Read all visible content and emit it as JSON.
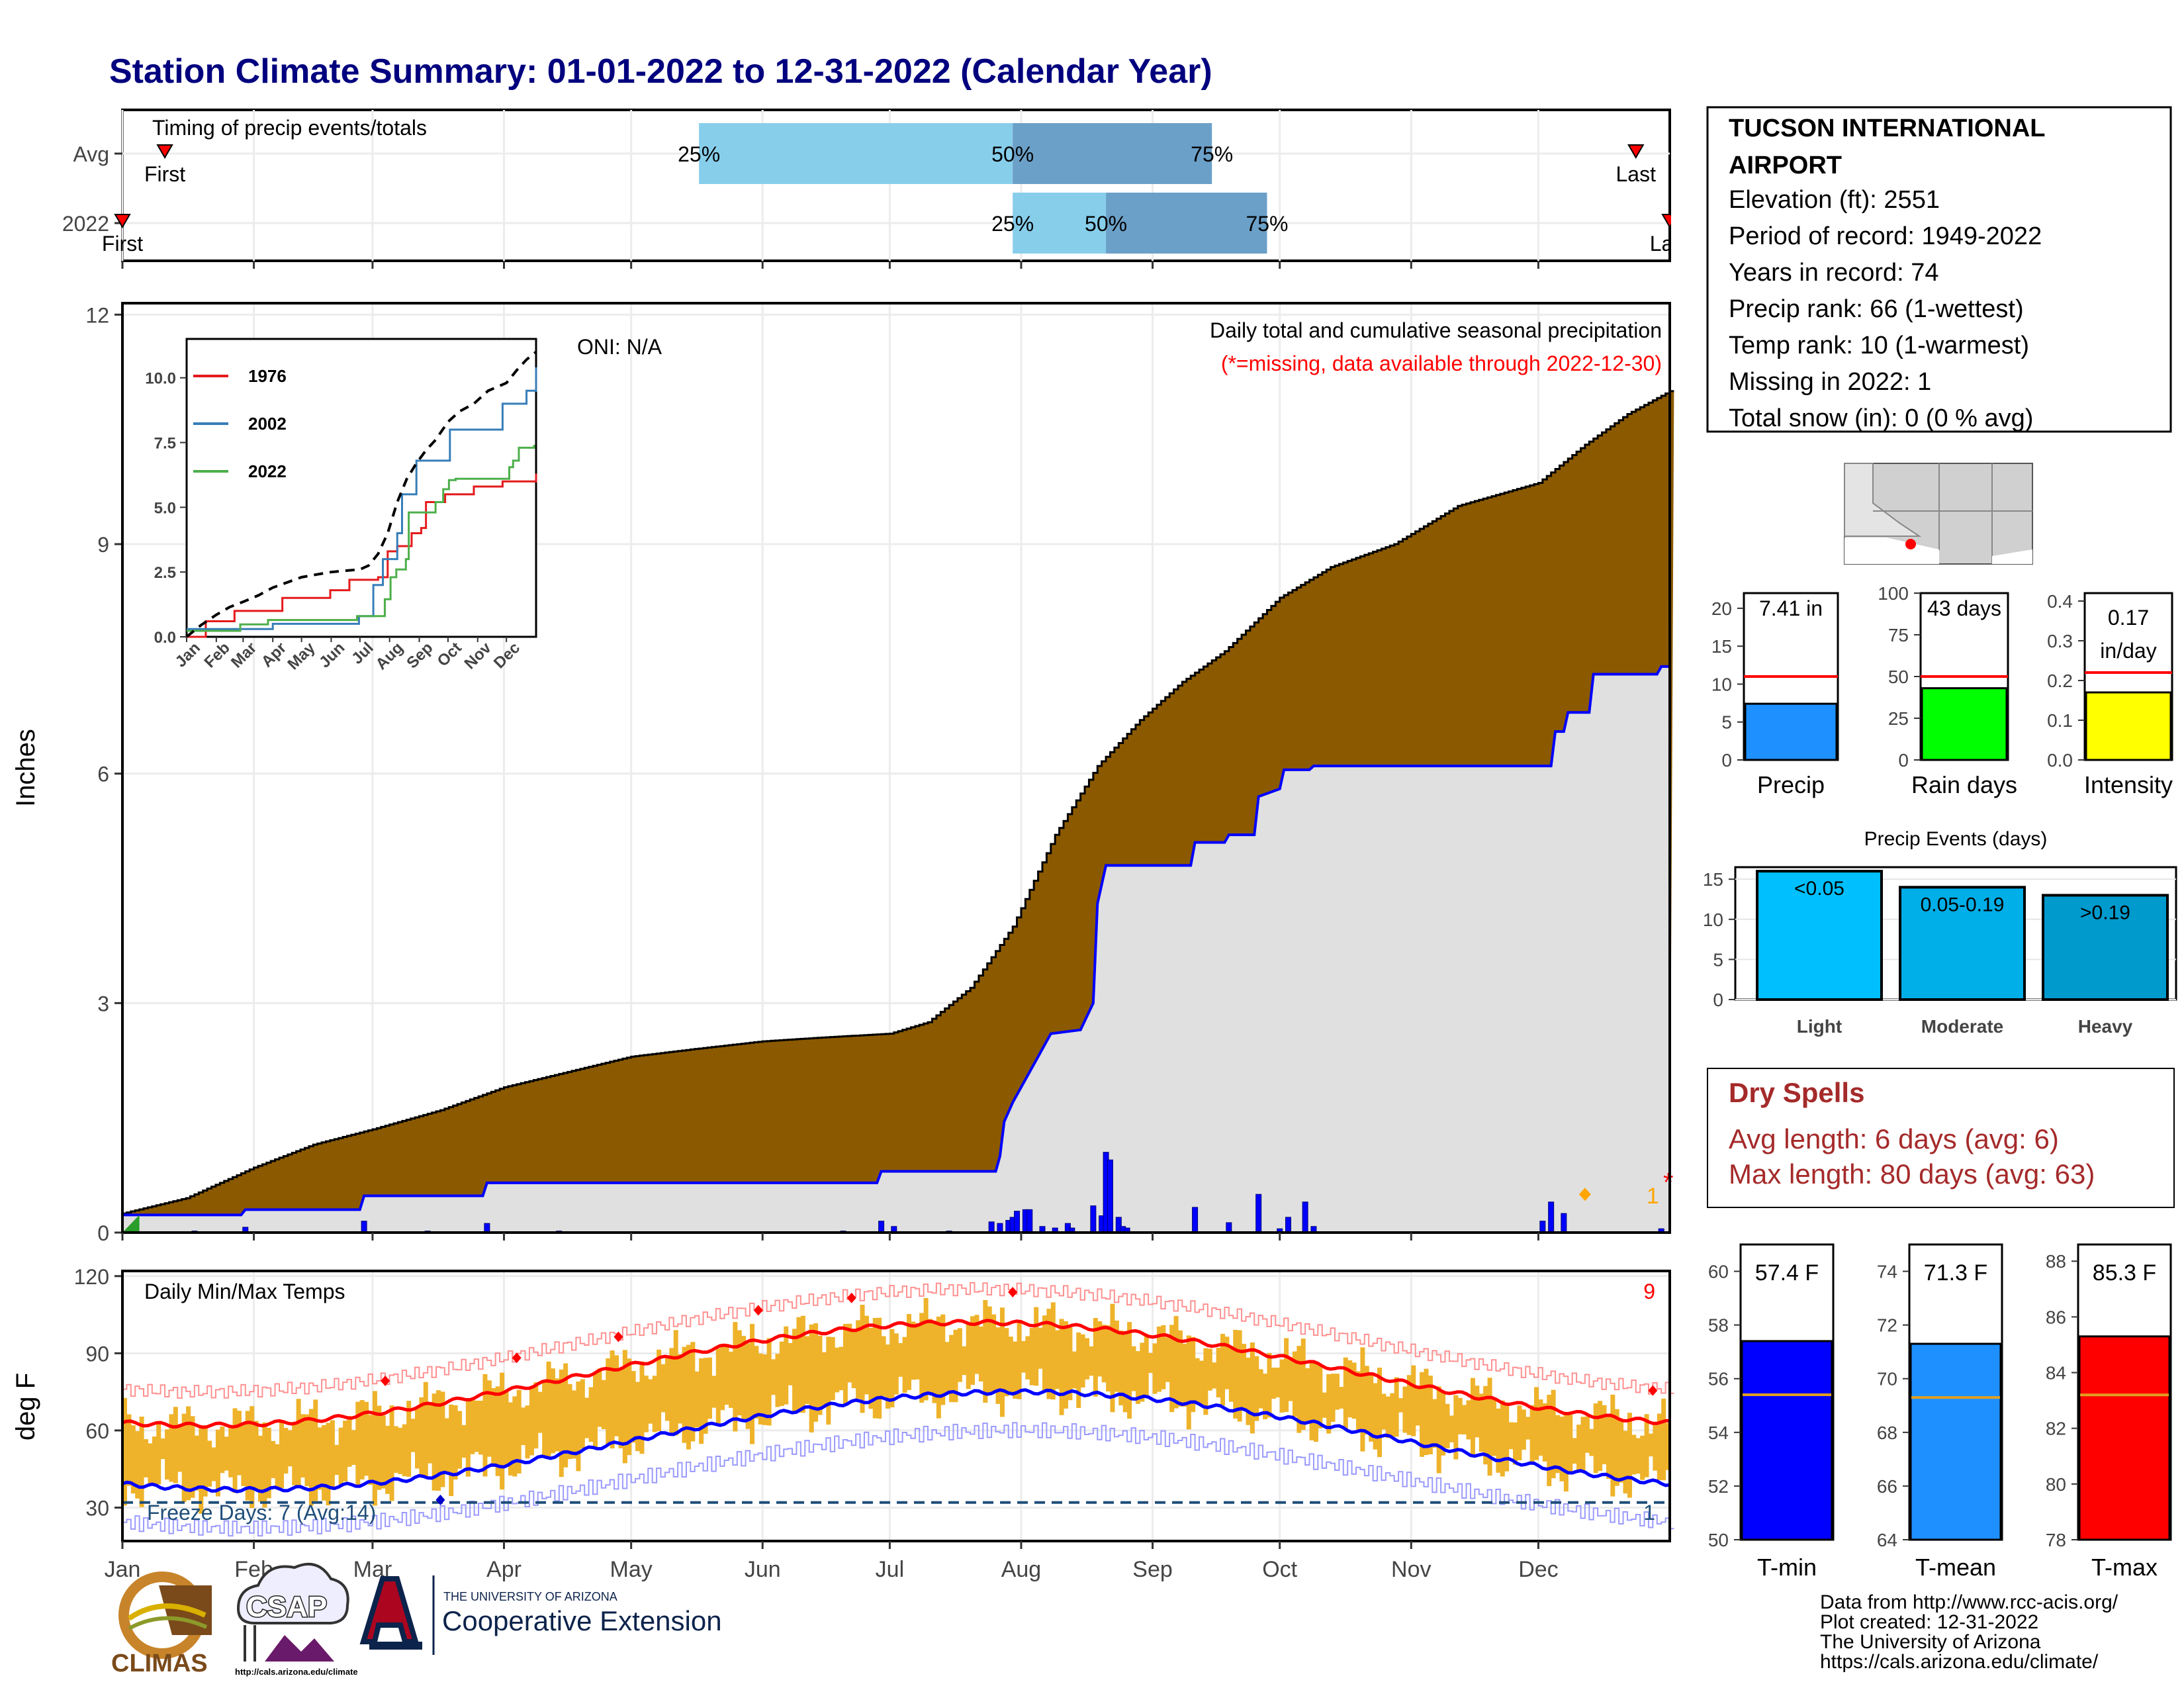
{
  "title": "Station Climate Summary: 01-01-2022 to 12-31-2022 (Calendar Year)",
  "colors": {
    "title": "#00007f",
    "precip_area": "#8b5a00",
    "precip_2022": "#e0e0e0",
    "precip_line": "#0000ff",
    "tmax": "#ff0000",
    "tmin": "#0000ff",
    "temp_bar": "#eeb32a",
    "light_blue": "#87ceeb",
    "mid_blue": "#6ba0c8",
    "dry_spell": "#a52a2a"
  },
  "timing": {
    "title": "Timing of precip events/totals",
    "rows": [
      {
        "label": "Avg",
        "first_label": "First",
        "last_label": "Last",
        "first_day": 10,
        "last_day": 357,
        "q25": 136,
        "q50": 210,
        "q75": 257
      },
      {
        "label": "2022",
        "first_label": "First",
        "last_label": "Last",
        "first_day": 0,
        "last_day": 365,
        "q25": 210,
        "q50": 232,
        "q75": 270
      }
    ],
    "q_labels": [
      "25%",
      "50%",
      "75%"
    ]
  },
  "station": {
    "name": "TUCSON INTERNATIONAL AIRPORT",
    "lines": [
      "Elevation (ft): 2551",
      "Period of record: 1949-2022",
      "Years in record: 74",
      "Precip rank: 66 (1-wettest)",
      "Temp rank: 10 (1-warmest)",
      "Missing in 2022: 1",
      "Total snow (in): 0 (0 % avg)"
    ]
  },
  "main_precip": {
    "ylabel": "Inches",
    "yticks": [
      0,
      3,
      6,
      9,
      12
    ],
    "title": "Daily total and cumulative seasonal precipitation",
    "subtitle": "(*=missing, data available through 2022-12-30)",
    "oni": "ONI: N/A",
    "missing_marker": "*",
    "count_label": "1",
    "avg_cum": [
      [
        0,
        0.25
      ],
      [
        15,
        0.45
      ],
      [
        31,
        0.85
      ],
      [
        45,
        1.15
      ],
      [
        59,
        1.35
      ],
      [
        75,
        1.6
      ],
      [
        90,
        1.9
      ],
      [
        105,
        2.1
      ],
      [
        120,
        2.3
      ],
      [
        135,
        2.4
      ],
      [
        151,
        2.5
      ],
      [
        165,
        2.55
      ],
      [
        181,
        2.6
      ],
      [
        190,
        2.75
      ],
      [
        200,
        3.2
      ],
      [
        210,
        4.0
      ],
      [
        220,
        5.2
      ],
      [
        230,
        6.1
      ],
      [
        240,
        6.7
      ],
      [
        250,
        7.2
      ],
      [
        260,
        7.6
      ],
      [
        273,
        8.3
      ],
      [
        285,
        8.7
      ],
      [
        300,
        9.0
      ],
      [
        315,
        9.5
      ],
      [
        334,
        9.8
      ],
      [
        345,
        10.3
      ],
      [
        355,
        10.7
      ],
      [
        365,
        11.0
      ]
    ],
    "cum_2022": [
      [
        0,
        0.23
      ],
      [
        28,
        0.23
      ],
      [
        29,
        0.3
      ],
      [
        56,
        0.3
      ],
      [
        57,
        0.48
      ],
      [
        85,
        0.48
      ],
      [
        86,
        0.65
      ],
      [
        178,
        0.65
      ],
      [
        179,
        0.8
      ],
      [
        206,
        0.8
      ],
      [
        207,
        1.0
      ],
      [
        208,
        1.45
      ],
      [
        210,
        1.7
      ],
      [
        213,
        2.0
      ],
      [
        216,
        2.3
      ],
      [
        219,
        2.6
      ],
      [
        226,
        2.65
      ],
      [
        229,
        3.0
      ],
      [
        230,
        4.3
      ],
      [
        232,
        4.8
      ],
      [
        252,
        4.8
      ],
      [
        253,
        5.1
      ],
      [
        260,
        5.1
      ],
      [
        261,
        5.2
      ],
      [
        267,
        5.2
      ],
      [
        268,
        5.7
      ],
      [
        273,
        5.8
      ],
      [
        274,
        6.05
      ],
      [
        280,
        6.05
      ],
      [
        281,
        6.1
      ],
      [
        337,
        6.1
      ],
      [
        338,
        6.55
      ],
      [
        340,
        6.55
      ],
      [
        341,
        6.8
      ],
      [
        346,
        6.8
      ],
      [
        347,
        7.3
      ],
      [
        362,
        7.3
      ],
      [
        363,
        7.4
      ],
      [
        365,
        7.4
      ]
    ],
    "daily": [
      [
        17,
        0.02
      ],
      [
        29,
        0.07
      ],
      [
        46,
        0.01
      ],
      [
        57,
        0.15
      ],
      [
        72,
        0.02
      ],
      [
        86,
        0.12
      ],
      [
        103,
        0.02
      ],
      [
        118,
        0.01
      ],
      [
        166,
        0.01
      ],
      [
        170,
        0.02
      ],
      [
        179,
        0.15
      ],
      [
        182,
        0.08
      ],
      [
        195,
        0.02
      ],
      [
        202,
        0.01
      ],
      [
        205,
        0.14
      ],
      [
        207,
        0.12
      ],
      [
        209,
        0.16
      ],
      [
        210,
        0.2
      ],
      [
        211,
        0.28
      ],
      [
        213,
        0.3
      ],
      [
        214,
        0.3
      ],
      [
        217,
        0.08
      ],
      [
        220,
        0.06
      ],
      [
        223,
        0.12
      ],
      [
        224,
        0.06
      ],
      [
        229,
        0.35
      ],
      [
        231,
        0.22
      ],
      [
        233,
        0.09
      ],
      [
        235,
        0.2
      ],
      [
        236,
        0.08
      ],
      [
        237,
        0.06
      ],
      [
        229,
        0.0
      ],
      [
        234,
        0.0
      ],
      [
        236,
        0.0
      ],
      [
        237,
        0.0
      ],
      [
        238,
        0.0
      ],
      [
        236,
        0.0
      ],
      [
        232,
        1.05
      ],
      [
        233,
        0.95
      ],
      [
        253,
        0.33
      ],
      [
        261,
        0.13
      ],
      [
        268,
        0.5
      ],
      [
        273,
        0.05
      ],
      [
        275,
        0.2
      ],
      [
        279,
        0.4
      ],
      [
        281,
        0.08
      ],
      [
        335,
        0.15
      ],
      [
        337,
        0.4
      ],
      [
        340,
        0.25
      ],
      [
        363,
        0.05
      ]
    ],
    "daily_peak": [
      232,
      1.05
    ],
    "orange_marks": [
      [
        345,
        0.5
      ]
    ]
  },
  "inset": {
    "yticks": [
      "0.0",
      "2.5",
      "5.0",
      "7.5",
      "10.0"
    ],
    "months": [
      "Jan",
      "Feb",
      "Mar",
      "Apr",
      "May",
      "Jun",
      "Jul",
      "Aug",
      "Sep",
      "Oct",
      "Nov",
      "Dec"
    ],
    "series": [
      {
        "name": "1976",
        "color": "#e41a1c",
        "values": [
          [
            0,
            0.0
          ],
          [
            20,
            0.6
          ],
          [
            40,
            0.6
          ],
          [
            50,
            1.0
          ],
          [
            90,
            1.0
          ],
          [
            100,
            1.5
          ],
          [
            150,
            1.8
          ],
          [
            170,
            2.2
          ],
          [
            200,
            2.3
          ],
          [
            210,
            3.3
          ],
          [
            220,
            3.5
          ],
          [
            235,
            4.0
          ],
          [
            245,
            4.2
          ],
          [
            250,
            5.2
          ],
          [
            270,
            5.5
          ],
          [
            300,
            5.8
          ],
          [
            330,
            6.0
          ],
          [
            365,
            6.3
          ]
        ]
      },
      {
        "name": "2002",
        "color": "#377eb8",
        "values": [
          [
            0,
            0.3
          ],
          [
            60,
            0.3
          ],
          [
            90,
            0.5
          ],
          [
            170,
            0.5
          ],
          [
            180,
            0.8
          ],
          [
            195,
            2.0
          ],
          [
            205,
            3.0
          ],
          [
            220,
            4.0
          ],
          [
            225,
            5.5
          ],
          [
            240,
            6.8
          ],
          [
            260,
            6.8
          ],
          [
            275,
            8.0
          ],
          [
            300,
            8.0
          ],
          [
            330,
            9.0
          ],
          [
            355,
            9.5
          ],
          [
            365,
            10.4
          ]
        ]
      },
      {
        "name": "2022",
        "color": "#4daf4a",
        "values": [
          [
            0,
            0.23
          ],
          [
            28,
            0.23
          ],
          [
            56,
            0.48
          ],
          [
            85,
            0.65
          ],
          [
            178,
            0.8
          ],
          [
            207,
            1.45
          ],
          [
            213,
            2.3
          ],
          [
            219,
            2.6
          ],
          [
            229,
            3.0
          ],
          [
            232,
            4.8
          ],
          [
            260,
            5.2
          ],
          [
            268,
            5.7
          ],
          [
            274,
            6.05
          ],
          [
            281,
            6.1
          ],
          [
            337,
            6.55
          ],
          [
            341,
            6.8
          ],
          [
            347,
            7.3
          ],
          [
            363,
            7.41
          ]
        ]
      },
      {
        "name": "",
        "color": "#000000",
        "dashed": true,
        "values": [
          [
            0,
            0.0
          ],
          [
            15,
            0.45
          ],
          [
            31,
            0.85
          ],
          [
            45,
            1.15
          ],
          [
            59,
            1.35
          ],
          [
            75,
            1.6
          ],
          [
            90,
            1.9
          ],
          [
            105,
            2.1
          ],
          [
            120,
            2.3
          ],
          [
            135,
            2.4
          ],
          [
            151,
            2.5
          ],
          [
            165,
            2.55
          ],
          [
            181,
            2.6
          ],
          [
            190,
            2.75
          ],
          [
            200,
            3.2
          ],
          [
            210,
            4.0
          ],
          [
            220,
            5.2
          ],
          [
            230,
            6.1
          ],
          [
            240,
            6.7
          ],
          [
            250,
            7.2
          ],
          [
            260,
            7.6
          ],
          [
            273,
            8.3
          ],
          [
            285,
            8.7
          ],
          [
            300,
            9.0
          ],
          [
            315,
            9.5
          ],
          [
            334,
            9.8
          ],
          [
            345,
            10.3
          ],
          [
            355,
            10.7
          ],
          [
            365,
            11.0
          ]
        ]
      }
    ]
  },
  "temp": {
    "ylabel": "deg F",
    "yticks": [
      30,
      60,
      90,
      120
    ],
    "title": "Daily Min/Max Temps",
    "freeze_label": "Freeze Days: 7 (Avg:14)",
    "count_top": "9",
    "count_bottom": "1",
    "freeze_level": 32,
    "months": [
      "Jan",
      "Feb",
      "Mar",
      "Apr",
      "May",
      "Jun",
      "Jul",
      "Aug",
      "Sep",
      "Oct",
      "Nov",
      "Dec"
    ]
  },
  "gauges_precip": [
    {
      "name": "Precip",
      "label": "7.41 in",
      "value": 7.41,
      "avg": 11.0,
      "ymax": 22,
      "yticks": [
        "0",
        "5",
        "10",
        "15",
        "20"
      ],
      "color": "#1e90ff"
    },
    {
      "name": "Rain days",
      "label": "43 days",
      "value": 43,
      "avg": 50,
      "ymax": 100,
      "yticks": [
        "0",
        "25",
        "50",
        "75",
        "100"
      ],
      "color": "#00ff00"
    },
    {
      "name": "Intensity",
      "label": "0.17 in/day",
      "value": 0.17,
      "avg": 0.22,
      "ymax": 0.42,
      "yticks": [
        "0.0",
        "0.1",
        "0.2",
        "0.3",
        "0.4"
      ],
      "color": "#ffff00"
    }
  ],
  "events": {
    "title": "Precip Events (days)",
    "yticks": [
      "0",
      "5",
      "10",
      "15"
    ],
    "bars": [
      {
        "name": "Light",
        "label": "<0.05",
        "value": 16,
        "color": "#00bfff"
      },
      {
        "name": "Moderate",
        "label": "0.05-0.19",
        "value": 14,
        "color": "#00aee8"
      },
      {
        "name": "Heavy",
        "label": ">0.19",
        "value": 13,
        "color": "#009acd"
      }
    ]
  },
  "dry_spells": {
    "title": "Dry Spells",
    "lines": [
      "Avg length: 6 days (avg: 6)",
      "Max length: 80 days (avg: 63)"
    ]
  },
  "gauges_temp": [
    {
      "name": "T-min",
      "label": "57.4 F",
      "value": 57.4,
      "avg": 55.4,
      "ymin": 50,
      "ymax": 61,
      "yticks": [
        "50",
        "52",
        "54",
        "56",
        "58",
        "60"
      ],
      "color": "#0000ff"
    },
    {
      "name": "T-mean",
      "label": "71.3 F",
      "value": 71.3,
      "avg": 69.3,
      "ymin": 64,
      "ymax": 75,
      "yticks": [
        "64",
        "66",
        "68",
        "70",
        "72",
        "74"
      ],
      "color": "#1e90ff"
    },
    {
      "name": "T-max",
      "label": "85.3 F",
      "value": 85.3,
      "avg": 83.2,
      "ymin": 78,
      "ymax": 88.6,
      "yticks": [
        "78",
        "80",
        "82",
        "84",
        "86",
        "88"
      ],
      "color": "#ff0000"
    }
  ],
  "footer": {
    "lines": [
      "Data from http://www.rcc-acis.org/",
      "Plot created: 12-31-2022",
      "The University of Arizona",
      "https://cals.arizona.edu/climate/"
    ]
  },
  "logos": {
    "climas": "CLIMAS",
    "csap": "CSAP",
    "csap_url": "http://cals.arizona.edu/climate",
    "ua_small": "THE UNIVERSITY OF ARIZONA",
    "ua_big": "Cooperative Extension"
  }
}
